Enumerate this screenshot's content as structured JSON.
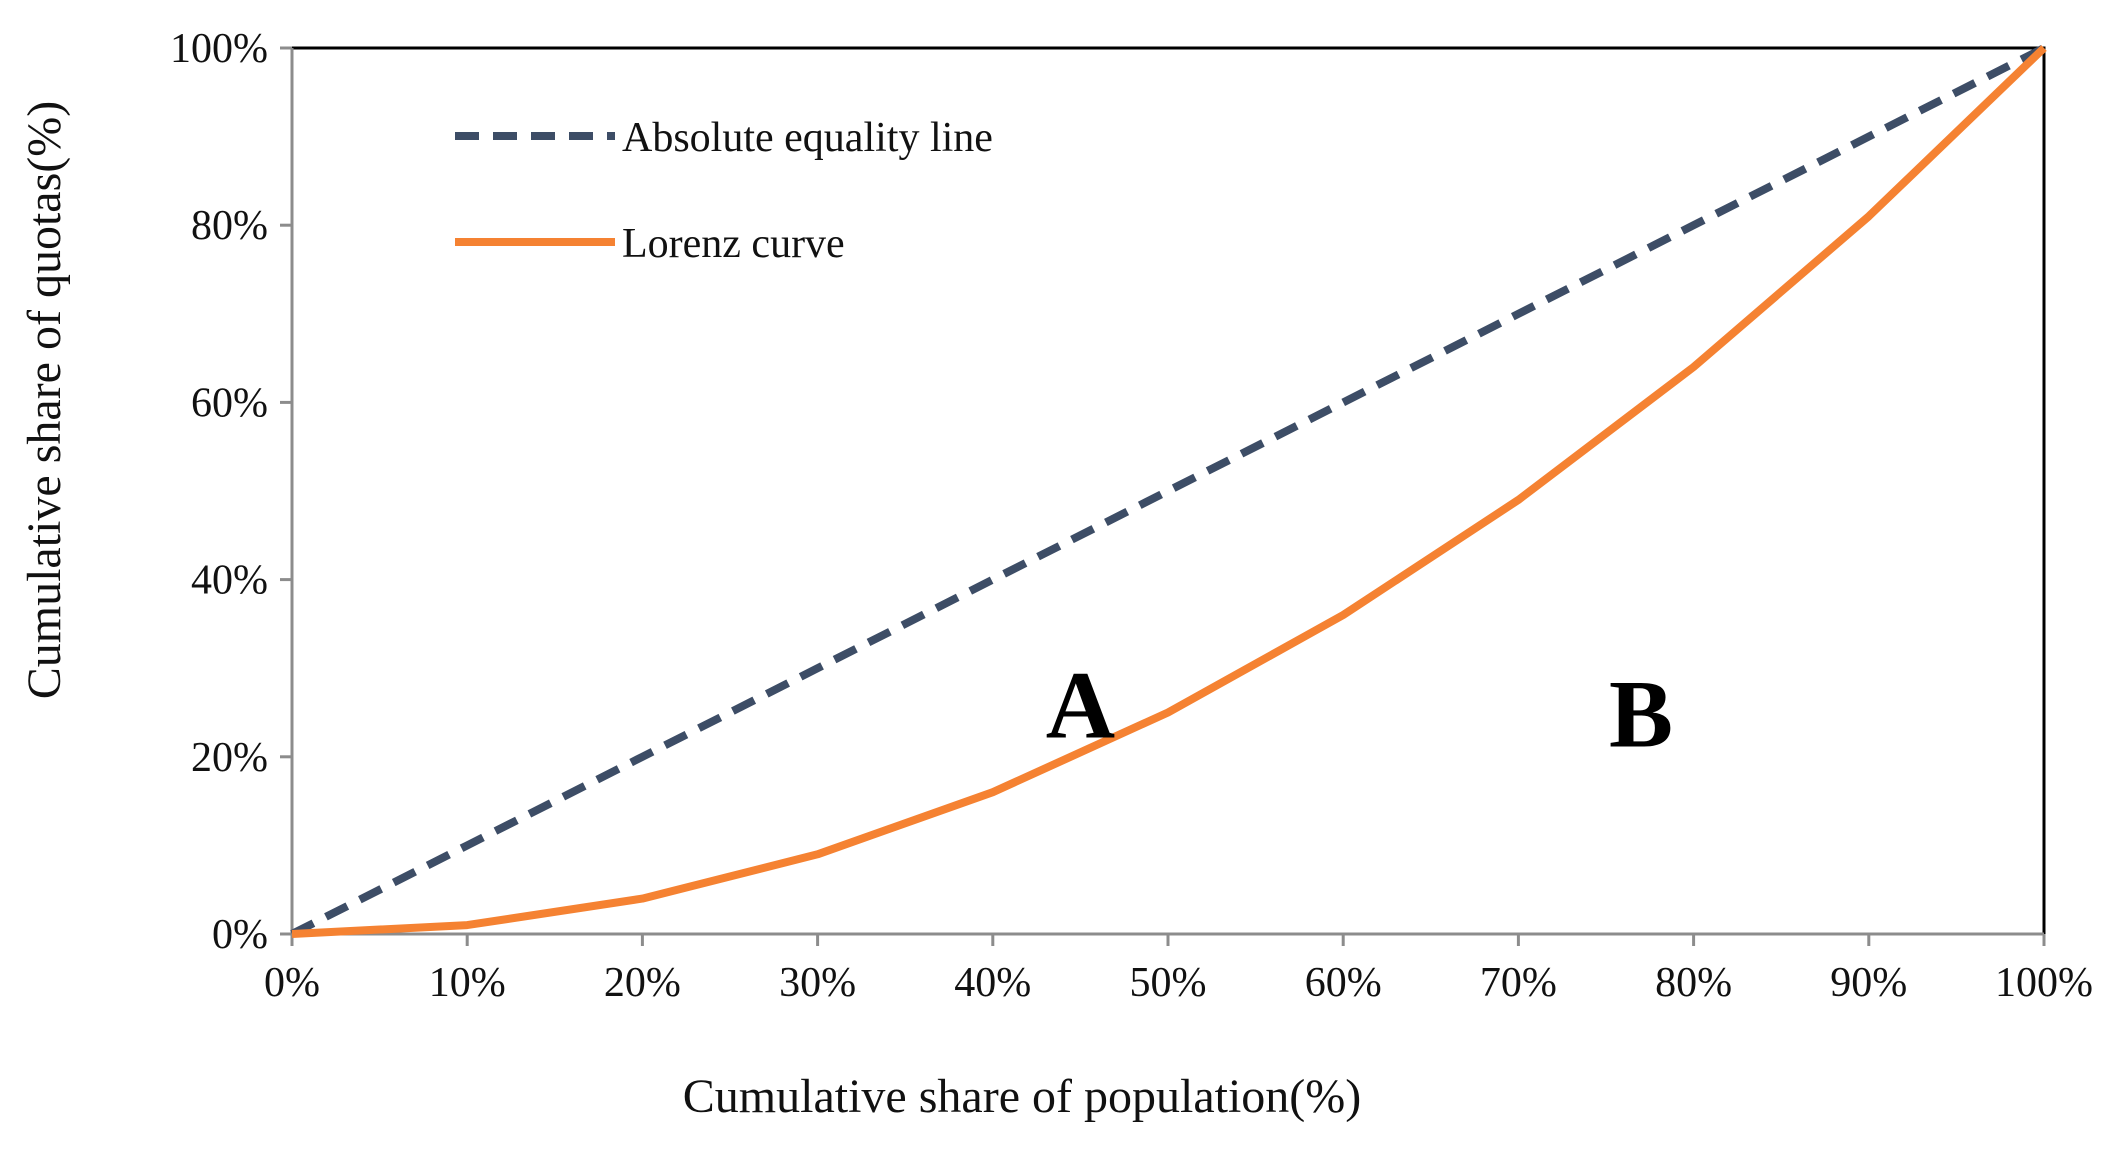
{
  "chart_data": {
    "type": "line",
    "title": "",
    "xlabel": "Cumulative share of population(%)",
    "ylabel": "Cumulative share of quotas(%)",
    "xlim": [
      0,
      100
    ],
    "ylim": [
      0,
      100
    ],
    "x_ticks": [
      "0%",
      "10%",
      "20%",
      "30%",
      "40%",
      "50%",
      "60%",
      "70%",
      "80%",
      "90%",
      "100%"
    ],
    "y_ticks": [
      "0%",
      "20%",
      "40%",
      "60%",
      "80%",
      "100%"
    ],
    "grid": false,
    "legend_position": "top-left",
    "series": [
      {
        "name": "Absolute equality line",
        "style": "dashed",
        "color": "#3D4D66",
        "x": [
          0,
          10,
          20,
          30,
          40,
          50,
          60,
          70,
          80,
          90,
          100
        ],
        "y": [
          0,
          10,
          20,
          30,
          40,
          50,
          60,
          70,
          80,
          90,
          100
        ]
      },
      {
        "name": "Lorenz curve",
        "style": "solid",
        "color": "#F58232",
        "x": [
          0,
          10,
          20,
          30,
          40,
          50,
          60,
          70,
          80,
          90,
          100
        ],
        "y": [
          0,
          1,
          4,
          9,
          16,
          25,
          36,
          49,
          64,
          81,
          100
        ]
      }
    ],
    "annotations": [
      {
        "text": "A",
        "x": 45,
        "y": 26
      },
      {
        "text": "B",
        "x": 77,
        "y": 25
      }
    ]
  }
}
